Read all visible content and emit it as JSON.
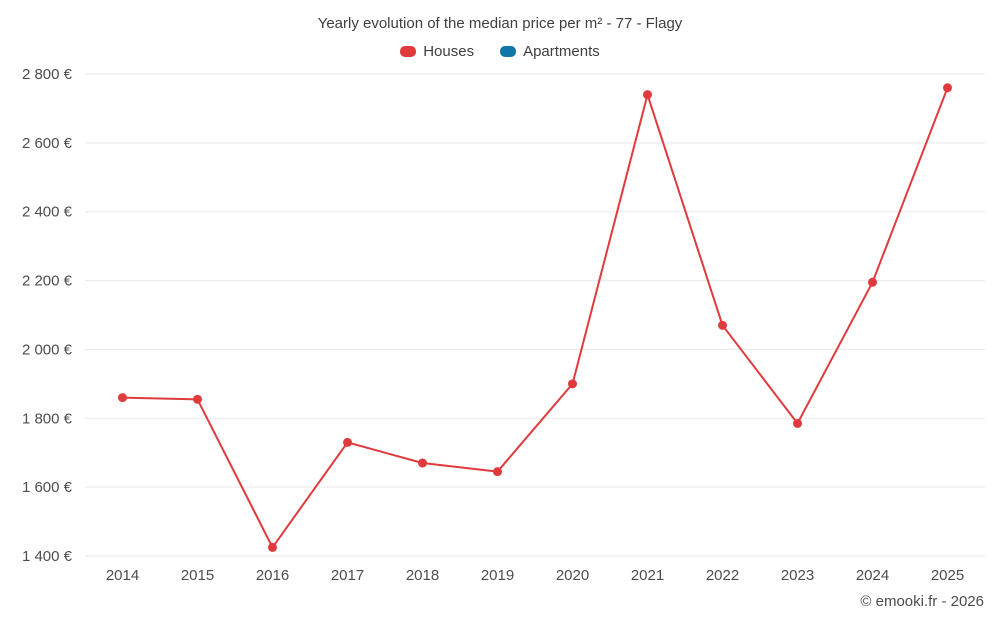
{
  "chart": {
    "title": "Yearly evolution of the median price per m² - 77 - Flagy",
    "footer": "© emooki.fr - 2026"
  },
  "chart_data": {
    "type": "line",
    "title": "Yearly evolution of the median price per m² - 77 - Flagy",
    "categories": [
      "2014",
      "2015",
      "2016",
      "2017",
      "2018",
      "2019",
      "2020",
      "2021",
      "2022",
      "2023",
      "2024",
      "2025"
    ],
    "series": [
      {
        "name": "Houses",
        "color": "#e03a3c",
        "values": [
          1860,
          1855,
          1425,
          1730,
          1670,
          1645,
          1900,
          2740,
          2070,
          1785,
          2195,
          2760
        ]
      },
      {
        "name": "Apartments",
        "color": "#0f76a8",
        "values": []
      }
    ],
    "xlabel": "",
    "ylabel": "",
    "ylim": [
      1400,
      2800
    ],
    "ytick_step": 200,
    "ytick_suffix": " €",
    "grid": true,
    "legend_position": "top",
    "marker": "circle",
    "background": "#ffffff",
    "gridline_color": "#e9e9e9",
    "text_color": "#4d4d4d"
  }
}
